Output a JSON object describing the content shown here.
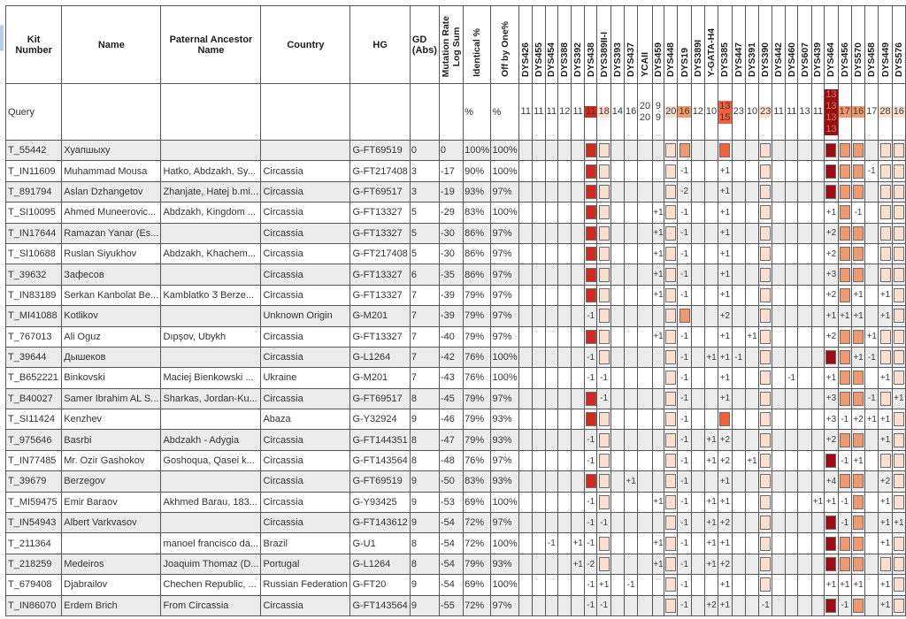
{
  "scrollbar": {
    "color": "#b9cfe6"
  },
  "marker_palette": {
    "red": "#d3291d",
    "pink": "#fbdfd0",
    "orange": "#f0996f",
    "tomato": "#f2603c",
    "darkred": "#9d0c10"
  },
  "darkred_text_color": "#cc8062",
  "table": {
    "text_columns": [
      {
        "label": "Kit Number",
        "width": 68
      },
      {
        "label": "Name",
        "width": 103
      },
      {
        "label": "Paternal Ancestor\nName",
        "width": 107
      },
      {
        "label": "Country",
        "width": 103
      },
      {
        "label": "HG",
        "width": 65
      },
      {
        "label": "GD\n(Abs)",
        "width": 23,
        "style": "gd"
      },
      {
        "label": "Mutation Rate\nLog Sum",
        "width": 35,
        "rotated": true
      },
      {
        "label": "Identical %",
        "width": 32,
        "rotated": true
      },
      {
        "label": "Off by One%",
        "width": 35,
        "rotated": true
      }
    ],
    "marker_columns": [
      {
        "name": "DYS426",
        "width": 15
      },
      {
        "name": "DYS455",
        "width": 15
      },
      {
        "name": "DYS454",
        "width": 15
      },
      {
        "name": "DYS388",
        "width": 15
      },
      {
        "name": "DYS392",
        "width": 15
      },
      {
        "name": "DYS438",
        "width": 15,
        "color": "red"
      },
      {
        "name": "DYS389II-I",
        "width": 15,
        "color": "pink"
      },
      {
        "name": "DYS393",
        "width": 15
      },
      {
        "name": "DYS437",
        "width": 15
      },
      {
        "name": "YCAII",
        "width": 21
      },
      {
        "name": "DYS459",
        "width": 15
      },
      {
        "name": "DYS448",
        "width": 15,
        "color": "pink"
      },
      {
        "name": "DYS19",
        "width": 15,
        "color": "orange"
      },
      {
        "name": "DYS389I",
        "width": 15
      },
      {
        "name": "Y-GATA-H4",
        "width": 15
      },
      {
        "name": "DYS385",
        "width": 16,
        "color": "tomato"
      },
      {
        "name": "DYS447",
        "width": 15
      },
      {
        "name": "DYS391",
        "width": 15
      },
      {
        "name": "DYS390",
        "width": 15,
        "color": "pink"
      },
      {
        "name": "DYS442",
        "width": 15
      },
      {
        "name": "DYS460",
        "width": 15
      },
      {
        "name": "DYS607",
        "width": 15
      },
      {
        "name": "DYS439",
        "width": 15
      },
      {
        "name": "DYS464",
        "width": 16,
        "color": "darkred"
      },
      {
        "name": "DYS456",
        "width": 15,
        "color": "orange"
      },
      {
        "name": "DYS570",
        "width": 15,
        "color": "orange"
      },
      {
        "name": "DYS458",
        "width": 15
      },
      {
        "name": "DYS449",
        "width": 15,
        "color": "pink"
      },
      {
        "name": "DYS576",
        "width": 15,
        "color": "pink"
      }
    ],
    "query": {
      "label": "Query",
      "identical": "%",
      "off_by_one": "%",
      "values": {
        "DYS426": "11",
        "DYS455": "11",
        "DYS454": "11",
        "DYS388": "12",
        "DYS392": "11",
        "DYS438": "11",
        "DYS389II-I": "18",
        "DYS393": "14",
        "DYS437": "16",
        "YCAII": "20\n20",
        "DYS459": "9\n9",
        "DYS448": "20",
        "DYS19": "16",
        "DYS389I": "12",
        "Y-GATA-H4": "10",
        "DYS385": "13\n15",
        "DYS447": "23",
        "DYS391": "10",
        "DYS390": "23",
        "DYS442": "11",
        "DYS460": "11",
        "DYS607": "13",
        "DYS439": "11",
        "DYS464": "13\n13\n13\n13",
        "DYS456": "17",
        "DYS570": "16",
        "DYS458": "17",
        "DYS449": "28",
        "DYS576": "16"
      }
    },
    "rows": [
      {
        "kit": "T_55442",
        "name": "Хуапшыху",
        "ancestor": "",
        "country": "",
        "hg": "G-FT69519",
        "gd": "0",
        "mutlog": "0",
        "identical": "100%",
        "off_by_one": "100%",
        "diffs": {}
      },
      {
        "kit": "T_IN11609",
        "name": "Muhammad Mousa",
        "ancestor": "Hatko, Abdzakh, Sy...",
        "country": "Circassia",
        "hg": "G-FT217408",
        "gd": "3",
        "mutlog": "-17",
        "identical": "90%",
        "off_by_one": "100%",
        "diffs": {
          "DYS19": "-1",
          "DYS385": "+1",
          "DYS458": "-1"
        }
      },
      {
        "kit": "T_891794",
        "name": "Aslan Dzhangetov",
        "ancestor": "Zhanjate, Hatej b.mi...",
        "country": "Circassia",
        "hg": "G-FT69517",
        "gd": "3",
        "mutlog": "-19",
        "identical": "93%",
        "off_by_one": "97%",
        "diffs": {
          "DYS19": "-2",
          "DYS385": "+1"
        }
      },
      {
        "kit": "T_SI10095",
        "name": "Ahmed Muneerovic...",
        "ancestor": "Abdzakh, Kingdom ...",
        "country": "Circassia",
        "hg": "G-FT13327",
        "gd": "5",
        "mutlog": "-29",
        "identical": "83%",
        "off_by_one": "100%",
        "diffs": {
          "DYS459": "+1",
          "DYS19": "-1",
          "DYS385": "+1",
          "DYS464": "+1",
          "DYS570": "-1"
        }
      },
      {
        "kit": "T_IN17644",
        "name": "Ramazan Yanar (Es...",
        "ancestor": "",
        "country": "Circassia",
        "hg": "G-FT13327",
        "gd": "5",
        "mutlog": "-30",
        "identical": "86%",
        "off_by_one": "97%",
        "diffs": {
          "DYS459": "+1",
          "DYS19": "-1",
          "DYS385": "+1",
          "DYS464": "+2"
        }
      },
      {
        "kit": "T_SI10688",
        "name": "Ruslan Siyukhov",
        "ancestor": "Abdzakh, Khachem...",
        "country": "Circassia",
        "hg": "G-FT217408",
        "gd": "5",
        "mutlog": "-30",
        "identical": "86%",
        "off_by_one": "97%",
        "diffs": {
          "DYS459": "+1",
          "DYS19": "-1",
          "DYS385": "+1",
          "DYS464": "+2"
        }
      },
      {
        "kit": "T_39632",
        "name": "Зафесов",
        "ancestor": "",
        "country": "Circassia",
        "hg": "G-FT13327",
        "gd": "6",
        "mutlog": "-35",
        "identical": "86%",
        "off_by_one": "97%",
        "diffs": {
          "DYS459": "+1",
          "DYS19": "-1",
          "DYS385": "+1",
          "DYS464": "+3"
        }
      },
      {
        "kit": "T_IN83189",
        "name": "Serkan Kanbolat Be...",
        "ancestor": "Kamblatko Ӡ Berze...",
        "country": "Circassia",
        "hg": "G-FT13327",
        "gd": "7",
        "mutlog": "-39",
        "identical": "79%",
        "off_by_one": "97%",
        "diffs": {
          "DYS459": "+1",
          "DYS19": "-1",
          "DYS385": "+1",
          "DYS464": "+2",
          "DYS570": "+1",
          "DYS449": "+1"
        }
      },
      {
        "kit": "T_MI41088",
        "name": "Kotlikov",
        "ancestor": "",
        "country": "Unknown Origin",
        "hg": "G-M201",
        "gd": "7",
        "mutlog": "-39",
        "identical": "79%",
        "off_by_one": "97%",
        "diffs": {
          "DYS438": "-1",
          "DYS385": "+2",
          "DYS464": "+1",
          "DYS456": "+1",
          "DYS570": "+1",
          "DYS449": "+1"
        }
      },
      {
        "kit": "T_767013",
        "name": "Ali Oguz",
        "ancestor": "Dıpşov, Ubykh",
        "country": "Circassia",
        "hg": "G-FT13327",
        "gd": "7",
        "mutlog": "-40",
        "identical": "79%",
        "off_by_one": "97%",
        "diffs": {
          "DYS459": "+1",
          "DYS19": "-1",
          "DYS385": "+1",
          "DYS391": "+1",
          "DYS464": "+2",
          "DYS458": "+1"
        }
      },
      {
        "kit": "T_39644",
        "name": "Дышеков",
        "ancestor": "",
        "country": "Circassia",
        "hg": "G-L1264",
        "gd": "7",
        "mutlog": "-42",
        "identical": "76%",
        "off_by_one": "100%",
        "diffs": {
          "DYS438": "-1",
          "DYS19": "-1",
          "Y-GATA-H4": "+1",
          "DYS385": "+1",
          "DYS447": "-1",
          "DYS570": "+1",
          "DYS458": "-1"
        }
      },
      {
        "kit": "T_B652221",
        "name": "Binkovski",
        "ancestor": "Maciej Bienkowski ...",
        "country": "Ukraine",
        "hg": "G-M201",
        "gd": "7",
        "mutlog": "-43",
        "identical": "76%",
        "off_by_one": "100%",
        "diffs": {
          "DYS438": "-1",
          "DYS389II-I": "-1",
          "DYS19": "-1",
          "DYS385": "+1",
          "DYS460": "-1",
          "DYS464": "+1",
          "DYS449": "+1"
        }
      },
      {
        "kit": "T_B40027",
        "name": "Samer Ibrahim AL S...",
        "ancestor": "Sharkas, Jordan-Ku...",
        "country": "Circassia",
        "hg": "G-FT69517",
        "gd": "8",
        "mutlog": "-45",
        "identical": "79%",
        "off_by_one": "97%",
        "diffs": {
          "DYS389II-I": "-1",
          "DYS19": "-1",
          "DYS385": "+1",
          "DYS464": "+3",
          "DYS458": "-1",
          "DYS576": "+1"
        }
      },
      {
        "kit": "T_SI11424",
        "name": "Kenzhev",
        "ancestor": "",
        "country": "Abaza",
        "hg": "G-Y32924",
        "gd": "9",
        "mutlog": "-46",
        "identical": "79%",
        "off_by_one": "93%",
        "diffs": {
          "DYS19": "-1",
          "DYS464": "+3",
          "DYS456": "-1",
          "DYS570": "+2",
          "DYS458": "+1",
          "DYS449": "+1"
        }
      },
      {
        "kit": "T_975646",
        "name": "Basrbi",
        "ancestor": "Abdzakh - Adygia",
        "country": "Circassia",
        "hg": "G-FT144351",
        "gd": "8",
        "mutlog": "-47",
        "identical": "79%",
        "off_by_one": "93%",
        "diffs": {
          "DYS438": "-1",
          "DYS19": "-1",
          "Y-GATA-H4": "+1",
          "DYS385": "+2",
          "DYS464": "+2",
          "DYS449": "+1"
        }
      },
      {
        "kit": "T_IN77485",
        "name": "Mr. Ozir Gashokov",
        "ancestor": "Goshoqua, Qasei k...",
        "country": "Circassia",
        "hg": "G-FT143564",
        "gd": "8",
        "mutlog": "-48",
        "identical": "76%",
        "off_by_one": "97%",
        "diffs": {
          "DYS438": "-1",
          "DYS19": "-1",
          "Y-GATA-H4": "+1",
          "DYS385": "+2",
          "DYS391": "+1",
          "DYS456": "-1",
          "DYS570": "+1"
        }
      },
      {
        "kit": "T_39679",
        "name": "Berzegov",
        "ancestor": "",
        "country": "Circassia",
        "hg": "G-FT69519",
        "gd": "9",
        "mutlog": "-50",
        "identical": "83%",
        "off_by_one": "93%",
        "diffs": {
          "DYS437": "+1",
          "DYS19": "-1",
          "DYS385": "+1",
          "DYS464": "+4",
          "DYS449": "+2"
        }
      },
      {
        "kit": "T_MI59475",
        "name": "Emir Baraov",
        "ancestor": "Akhmed Barau, 183...",
        "country": "Circassia",
        "hg": "G-Y93425",
        "gd": "9",
        "mutlog": "-53",
        "identical": "69%",
        "off_by_one": "100%",
        "diffs": {
          "DYS438": "-1",
          "DYS459": "+1",
          "DYS19": "-1",
          "Y-GATA-H4": "+1",
          "DYS385": "+1",
          "DYS439": "+1",
          "DYS464": "+1",
          "DYS456": "-1",
          "DYS449": "+1"
        }
      },
      {
        "kit": "T_IN54943",
        "name": "Albert Varkvasov",
        "ancestor": "",
        "country": "Circassia",
        "hg": "G-FT143612",
        "gd": "9",
        "mutlog": "-54",
        "identical": "72%",
        "off_by_one": "97%",
        "diffs": {
          "DYS438": "-1",
          "DYS389II-I": "-1",
          "DYS19": "-1",
          "Y-GATA-H4": "+1",
          "DYS385": "+2",
          "DYS456": "-1",
          "DYS449": "+1",
          "DYS576": "+1"
        }
      },
      {
        "kit": "T_211364",
        "name": "",
        "ancestor": "manoel francisco da...",
        "country": "Brazil",
        "hg": "G-U1",
        "gd": "8",
        "mutlog": "-54",
        "identical": "72%",
        "off_by_one": "100%",
        "diffs": {
          "DYS454": "-1",
          "DYS392": "+1",
          "DYS438": "-1",
          "DYS459": "+1",
          "DYS19": "-1",
          "Y-GATA-H4": "+1",
          "DYS385": "+1",
          "DYS449": "+1"
        }
      },
      {
        "kit": "T_218259",
        "name": "Medeiros",
        "ancestor": "Joaquim Thomaz (D...",
        "country": "Portugal",
        "hg": "G-L1264",
        "gd": "8",
        "mutlog": "-54",
        "identical": "79%",
        "off_by_one": "93%",
        "diffs": {
          "DYS392": "+1",
          "DYS438": "-2",
          "DYS459": "+1",
          "DYS19": "-1",
          "Y-GATA-H4": "+1",
          "DYS385": "+2"
        }
      },
      {
        "kit": "T_679408",
        "name": "Djabrailov",
        "ancestor": "Chechen Republic, ...",
        "country": "Russian Federation",
        "hg": "G-FT20",
        "gd": "9",
        "mutlog": "-54",
        "identical": "69%",
        "off_by_one": "100%",
        "diffs": {
          "DYS438": "-1",
          "DYS389II-I": "+1",
          "DYS437": "-1",
          "DYS19": "-1",
          "DYS385": "+1",
          "DYS464": "+1",
          "DYS456": "+1",
          "DYS570": "+1",
          "DYS449": "+1"
        }
      },
      {
        "kit": "T_IN86070",
        "name": "Erdem Brich",
        "ancestor": "From Circassia",
        "country": "Circassia",
        "hg": "G-FT143564",
        "gd": "9",
        "mutlog": "-55",
        "identical": "72%",
        "off_by_one": "97%",
        "diffs": {
          "DYS438": "-1",
          "DYS389II-I": "-1",
          "DYS19": "-1",
          "Y-GATA-H4": "+2",
          "DYS385": "+1",
          "DYS390": "-1",
          "DYS456": "-1",
          "DYS449": "+1"
        }
      }
    ]
  }
}
